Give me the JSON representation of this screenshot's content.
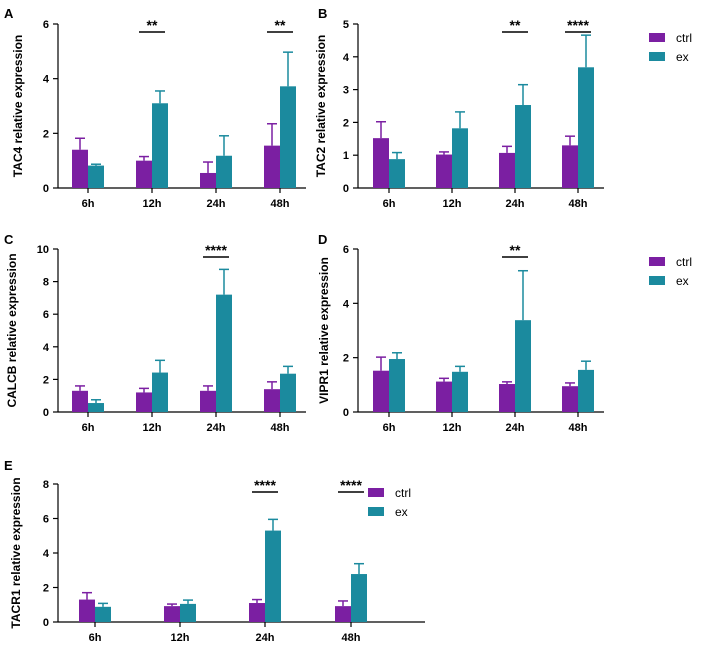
{
  "colors": {
    "ctrl": "#7b1fa2",
    "ex": "#1b8a9e",
    "axis": "#000000"
  },
  "legend": {
    "ctrl_label": "ctrl",
    "ex_label": "ex"
  },
  "chart_data": [
    {
      "panel": "A",
      "type": "bar",
      "ylabel": "TAC4 relative expression",
      "categories": [
        "6h",
        "12h",
        "24h",
        "48h"
      ],
      "ylim": [
        0,
        6
      ],
      "yticks": [
        0,
        2,
        4,
        6
      ],
      "series": [
        {
          "name": "ctrl",
          "values": [
            1.4,
            1.0,
            0.55,
            1.55
          ],
          "errors": [
            0.42,
            0.15,
            0.4,
            0.8
          ]
        },
        {
          "name": "ex",
          "values": [
            0.82,
            3.1,
            1.18,
            3.72
          ],
          "errors": [
            0.05,
            0.45,
            0.73,
            1.25
          ]
        }
      ],
      "significance": [
        {
          "category": "12h",
          "label": "**"
        },
        {
          "category": "48h",
          "label": "**"
        }
      ]
    },
    {
      "panel": "B",
      "type": "bar",
      "ylabel": "TAC2 relative expression",
      "categories": [
        "6h",
        "12h",
        "24h",
        "48h"
      ],
      "ylim": [
        0,
        5
      ],
      "yticks": [
        0,
        1,
        2,
        3,
        4,
        5
      ],
      "series": [
        {
          "name": "ctrl",
          "values": [
            1.52,
            1.02,
            1.07,
            1.3
          ],
          "errors": [
            0.5,
            0.08,
            0.2,
            0.28
          ]
        },
        {
          "name": "ex",
          "values": [
            0.88,
            1.82,
            2.53,
            3.68
          ],
          "errors": [
            0.2,
            0.5,
            0.62,
            0.98
          ]
        }
      ],
      "significance": [
        {
          "category": "24h",
          "label": "**"
        },
        {
          "category": "48h",
          "label": "****"
        }
      ]
    },
    {
      "panel": "C",
      "type": "bar",
      "ylabel": "CALCB relative expression",
      "categories": [
        "6h",
        "12h",
        "24h",
        "48h"
      ],
      "ylim": [
        0,
        10
      ],
      "yticks": [
        0,
        2,
        4,
        6,
        8,
        10
      ],
      "series": [
        {
          "name": "ctrl",
          "values": [
            1.3,
            1.2,
            1.3,
            1.4
          ],
          "errors": [
            0.3,
            0.25,
            0.3,
            0.45
          ]
        },
        {
          "name": "ex",
          "values": [
            0.55,
            2.42,
            7.2,
            2.35
          ],
          "errors": [
            0.2,
            0.75,
            1.55,
            0.45
          ]
        }
      ],
      "significance": [
        {
          "category": "24h",
          "label": "****"
        }
      ]
    },
    {
      "panel": "D",
      "type": "bar",
      "ylabel": "VIPR1 relative expression",
      "categories": [
        "6h",
        "12h",
        "24h",
        "48h"
      ],
      "ylim": [
        0,
        6
      ],
      "yticks": [
        0,
        2,
        4,
        6
      ],
      "series": [
        {
          "name": "ctrl",
          "values": [
            1.52,
            1.12,
            1.03,
            0.95
          ],
          "errors": [
            0.5,
            0.12,
            0.08,
            0.12
          ]
        },
        {
          "name": "ex",
          "values": [
            1.95,
            1.48,
            3.38,
            1.55
          ],
          "errors": [
            0.23,
            0.2,
            1.82,
            0.32
          ]
        }
      ],
      "significance": [
        {
          "category": "24h",
          "label": "**"
        }
      ]
    },
    {
      "panel": "E",
      "type": "bar",
      "ylabel": "TACR1 relative expression",
      "categories": [
        "6h",
        "12h",
        "24h",
        "48h"
      ],
      "ylim": [
        0,
        8
      ],
      "yticks": [
        0,
        2,
        4,
        6,
        8
      ],
      "series": [
        {
          "name": "ctrl",
          "values": [
            1.3,
            0.92,
            1.1,
            0.92
          ],
          "errors": [
            0.4,
            0.12,
            0.2,
            0.3
          ]
        },
        {
          "name": "ex",
          "values": [
            0.88,
            1.05,
            5.3,
            2.78
          ],
          "errors": [
            0.2,
            0.22,
            0.65,
            0.6
          ]
        }
      ],
      "significance": [
        {
          "category": "24h",
          "label": "****"
        },
        {
          "category": "48h",
          "label": "****"
        }
      ]
    }
  ]
}
